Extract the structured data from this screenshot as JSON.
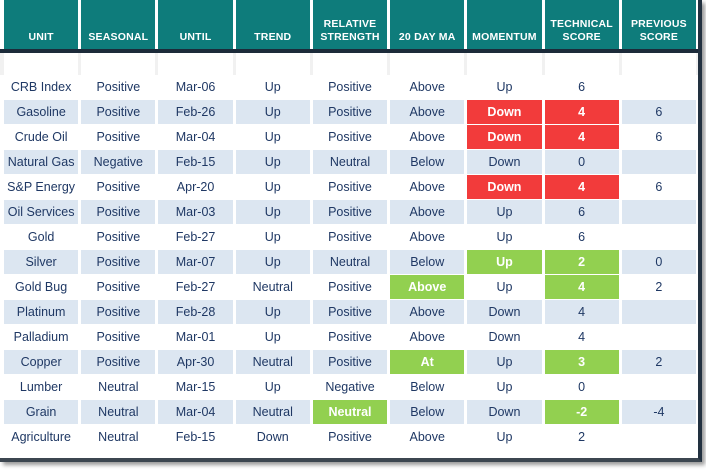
{
  "colors": {
    "header_bg": "#0E7C7B",
    "header_text": "#FFFFFF",
    "body_text": "#1F3864",
    "alt_row_bg": "#DCE6F1",
    "red": "#F23B3B",
    "green": "#92D050",
    "divider": "#1C2B3A"
  },
  "columns": [
    "UNIT",
    "SEASONAL",
    "UNTIL",
    "TREND",
    "RELATIVE\nSTRENGTH",
    "20 DAY MA",
    "MOMENTUM",
    "TECHNICAL\nSCORE",
    "PREVIOUS\nSCORE"
  ],
  "rows": [
    {
      "unit": "CRB Index",
      "seasonal": "Positive",
      "until": "Mar-06",
      "trend": "Up",
      "relative_strength": "Positive",
      "ma": "Above",
      "momentum": "Up",
      "technical_score": "6",
      "previous_score": "",
      "highlights": {}
    },
    {
      "unit": "Gasoline",
      "seasonal": "Positive",
      "until": "Feb-26",
      "trend": "Up",
      "relative_strength": "Positive",
      "ma": "Above",
      "momentum": "Down",
      "technical_score": "4",
      "previous_score": "6",
      "highlights": {
        "momentum": "red",
        "technical_score": "red"
      }
    },
    {
      "unit": "Crude Oil",
      "seasonal": "Positive",
      "until": "Mar-04",
      "trend": "Up",
      "relative_strength": "Positive",
      "ma": "Above",
      "momentum": "Down",
      "technical_score": "4",
      "previous_score": "6",
      "highlights": {
        "momentum": "red",
        "technical_score": "red"
      }
    },
    {
      "unit": "Natural Gas",
      "seasonal": "Negative",
      "until": "Feb-15",
      "trend": "Up",
      "relative_strength": "Neutral",
      "ma": "Below",
      "momentum": "Down",
      "technical_score": "0",
      "previous_score": "",
      "highlights": {}
    },
    {
      "unit": "S&P Energy",
      "seasonal": "Positive",
      "until": "Apr-20",
      "trend": "Up",
      "relative_strength": "Positive",
      "ma": "Above",
      "momentum": "Down",
      "technical_score": "4",
      "previous_score": "6",
      "highlights": {
        "momentum": "red",
        "technical_score": "red"
      }
    },
    {
      "unit": "Oil Services",
      "seasonal": "Positive",
      "until": "Mar-03",
      "trend": "Up",
      "relative_strength": "Positive",
      "ma": "Above",
      "momentum": "Up",
      "technical_score": "6",
      "previous_score": "",
      "highlights": {}
    },
    {
      "unit": "Gold",
      "seasonal": "Positive",
      "until": "Feb-27",
      "trend": "Up",
      "relative_strength": "Positive",
      "ma": "Above",
      "momentum": "Up",
      "technical_score": "6",
      "previous_score": "",
      "highlights": {}
    },
    {
      "unit": "Silver",
      "seasonal": "Positive",
      "until": "Mar-07",
      "trend": "Up",
      "relative_strength": "Neutral",
      "ma": "Below",
      "momentum": "Up",
      "technical_score": "2",
      "previous_score": "0",
      "highlights": {
        "momentum": "green",
        "technical_score": "green"
      }
    },
    {
      "unit": "Gold Bug",
      "seasonal": "Positive",
      "until": "Feb-27",
      "trend": "Neutral",
      "relative_strength": "Positive",
      "ma": "Above",
      "momentum": "Up",
      "technical_score": "4",
      "previous_score": "2",
      "highlights": {
        "ma": "green",
        "technical_score": "green"
      }
    },
    {
      "unit": "Platinum",
      "seasonal": "Positive",
      "until": "Feb-28",
      "trend": "Up",
      "relative_strength": "Positive",
      "ma": "Above",
      "momentum": "Down",
      "technical_score": "4",
      "previous_score": "",
      "highlights": {}
    },
    {
      "unit": "Palladium",
      "seasonal": "Positive",
      "until": "Mar-01",
      "trend": "Up",
      "relative_strength": "Positive",
      "ma": "Above",
      "momentum": "Down",
      "technical_score": "4",
      "previous_score": "",
      "highlights": {}
    },
    {
      "unit": "Copper",
      "seasonal": "Positive",
      "until": "Apr-30",
      "trend": "Neutral",
      "relative_strength": "Positive",
      "ma": "At",
      "momentum": "Up",
      "technical_score": "3",
      "previous_score": "2",
      "highlights": {
        "ma": "green",
        "technical_score": "green"
      }
    },
    {
      "unit": "Lumber",
      "seasonal": "Neutral",
      "until": "Mar-15",
      "trend": "Up",
      "relative_strength": "Negative",
      "ma": "Below",
      "momentum": "Up",
      "technical_score": "0",
      "previous_score": "",
      "highlights": {}
    },
    {
      "unit": "Grain",
      "seasonal": "Neutral",
      "until": "Mar-04",
      "trend": "Neutral",
      "relative_strength": "Neutral",
      "ma": "Below",
      "momentum": "Down",
      "technical_score": "-2",
      "previous_score": "-4",
      "highlights": {
        "relative_strength": "green",
        "technical_score": "green"
      }
    },
    {
      "unit": "Agriculture",
      "seasonal": "Neutral",
      "until": "Feb-15",
      "trend": "Down",
      "relative_strength": "Positive",
      "ma": "Above",
      "momentum": "Up",
      "technical_score": "2",
      "previous_score": "",
      "highlights": {}
    }
  ]
}
